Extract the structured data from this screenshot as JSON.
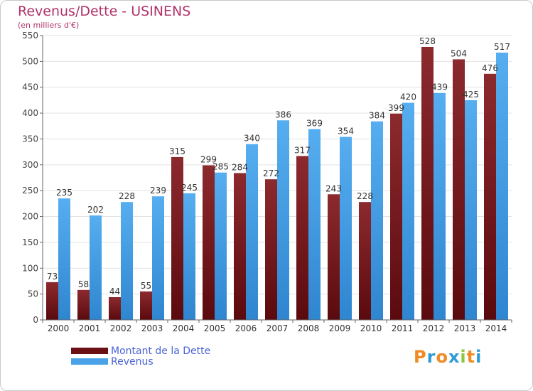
{
  "header": {
    "title": "Revenus/Dette - USINENS",
    "subtitle": "(en milliers d'€)"
  },
  "chart_data": {
    "type": "bar",
    "categories": [
      "2000",
      "2001",
      "2002",
      "2003",
      "2004",
      "2005",
      "2006",
      "2007",
      "2008",
      "2009",
      "2010",
      "2011",
      "2012",
      "2013",
      "2014"
    ],
    "series": [
      {
        "name": "Montant de la Dette",
        "color": "#7a1a1e",
        "values": [
          73,
          58,
          44,
          55,
          315,
          299,
          284,
          272,
          317,
          243,
          228,
          399,
          528,
          504,
          476
        ]
      },
      {
        "name": "Revenus",
        "color": "#4aa3e8",
        "values": [
          235,
          202,
          228,
          239,
          245,
          285,
          340,
          386,
          369,
          354,
          384,
          420,
          439,
          425,
          517
        ]
      }
    ],
    "ylim": [
      0,
      550
    ],
    "yticks": [
      0,
      50,
      100,
      150,
      200,
      250,
      300,
      350,
      400,
      450,
      500,
      550
    ],
    "grid": true,
    "legend_position": "bottom-left"
  },
  "legend": {
    "items": [
      {
        "label": "Montant de la Dette",
        "color": "#6a0f14"
      },
      {
        "label": "Revenus",
        "color": "#4aa3e8"
      }
    ]
  },
  "logo": {
    "letters": [
      {
        "ch": "P",
        "color": "#f08a24"
      },
      {
        "ch": "r",
        "color": "#2e9bd6"
      },
      {
        "ch": "o",
        "color": "#f08a24"
      },
      {
        "ch": "x",
        "color": "#2e9bd6"
      },
      {
        "ch": "i",
        "color": "#8cc63f"
      },
      {
        "ch": "t",
        "color": "#f08a24"
      },
      {
        "ch": "i",
        "color": "#2e9bd6"
      }
    ]
  }
}
